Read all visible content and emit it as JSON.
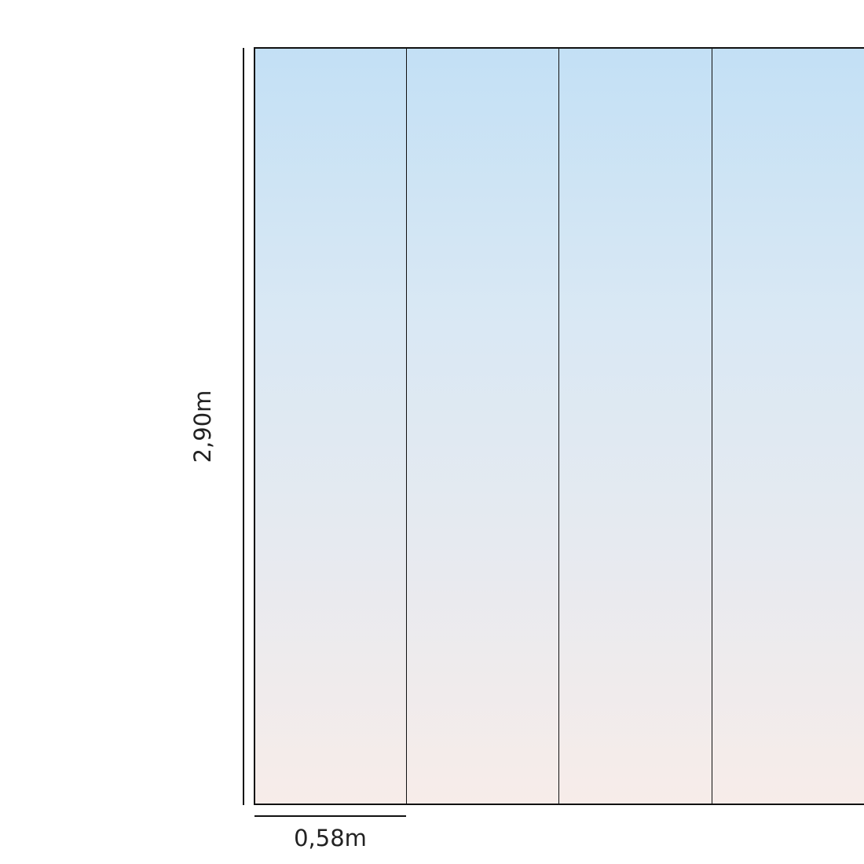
{
  "dimensions": {
    "height_label": "2,90m",
    "panel_width_label": "0,58m"
  },
  "colors": {
    "panel_top": "#c3e0f5",
    "panel_bottom": "#f7ece9",
    "line": "#111111"
  }
}
